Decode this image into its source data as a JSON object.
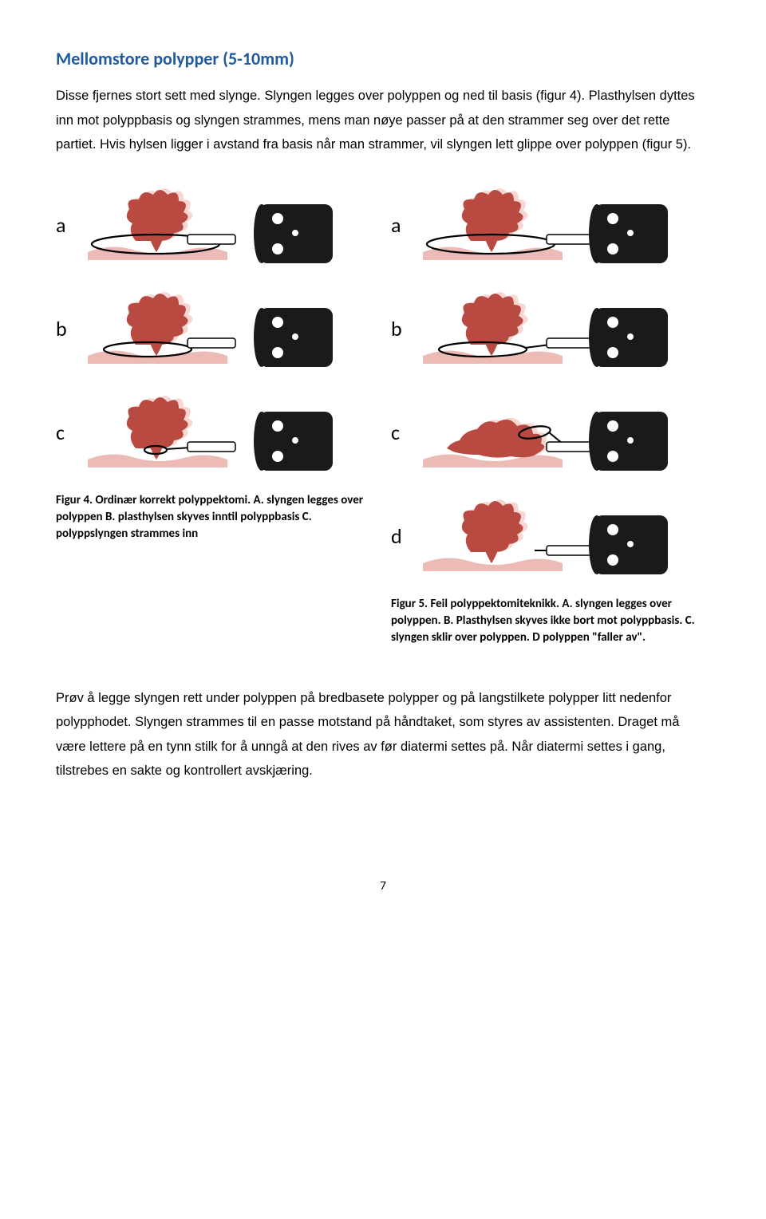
{
  "heading": "Mellomstore polypper (5-10mm)",
  "intro": "Disse fjernes stort sett med slynge. Slyngen legges over polyppen og ned til basis (figur 4). Plasthylsen dyttes inn mot polyppbasis og slyngen strammes, mens man nøye passer på at den strammer seg over det rette partiet. Hvis hylsen ligger i avstand fra basis når man strammer, vil slyngen lett glippe over polyppen (figur 5).",
  "figure4": {
    "rows": [
      {
        "label": "a",
        "snare": "wide",
        "sheath_close": true,
        "polyp_tilt": false
      },
      {
        "label": "b",
        "snare": "narrow",
        "sheath_close": true,
        "polyp_tilt": false
      },
      {
        "label": "c",
        "snare": "tight",
        "sheath_close": true,
        "polyp_tilt": false
      }
    ],
    "caption": "Figur 4. Ordinær korrekt polyppektomi. A. slyngen legges over polyppen B. plasthylsen skyves inntil polyppbasis C. polyppslyngen strammes inn"
  },
  "figure5": {
    "rows": [
      {
        "label": "a",
        "snare": "wide",
        "sheath_close": false,
        "polyp_tilt": false
      },
      {
        "label": "b",
        "snare": "narrow",
        "sheath_close": false,
        "polyp_tilt": false
      },
      {
        "label": "c",
        "snare": "slip",
        "sheath_close": false,
        "polyp_tilt": true
      },
      {
        "label": "d",
        "snare": "none",
        "sheath_close": false,
        "polyp_tilt": false
      }
    ],
    "caption": "Figur 5. Feil polyppektomiteknikk. A. slyngen legges over polyppen. B. Plasthylsen skyves ikke bort mot polyppbasis. C. slyngen sklir over polyppen. D polyppen \"faller av\"."
  },
  "colors": {
    "polyp_fill": "#b84a42",
    "polyp_shadow": "#f8d7d3",
    "mucosa_fill": "#e9afa9",
    "scope_fill": "#1a1a1a",
    "scope_dot": "#ffffff",
    "snare_stroke": "#000000",
    "sheath_fill": "#ffffff",
    "sheath_stroke": "#000000"
  },
  "outro": "Prøv å legge slyngen rett under polyppen på bredbasete polypper og på langstilkete polypper litt nedenfor polypphodet. Slyngen strammes til en passe motstand på håndtaket, som styres av assistenten. Draget må være lettere på en tynn stilk for å unngå at den rives av før diatermi settes på. Når diatermi settes i gang, tilstrebes en sakte og kontrollert avskjæring.",
  "page_number": "7"
}
